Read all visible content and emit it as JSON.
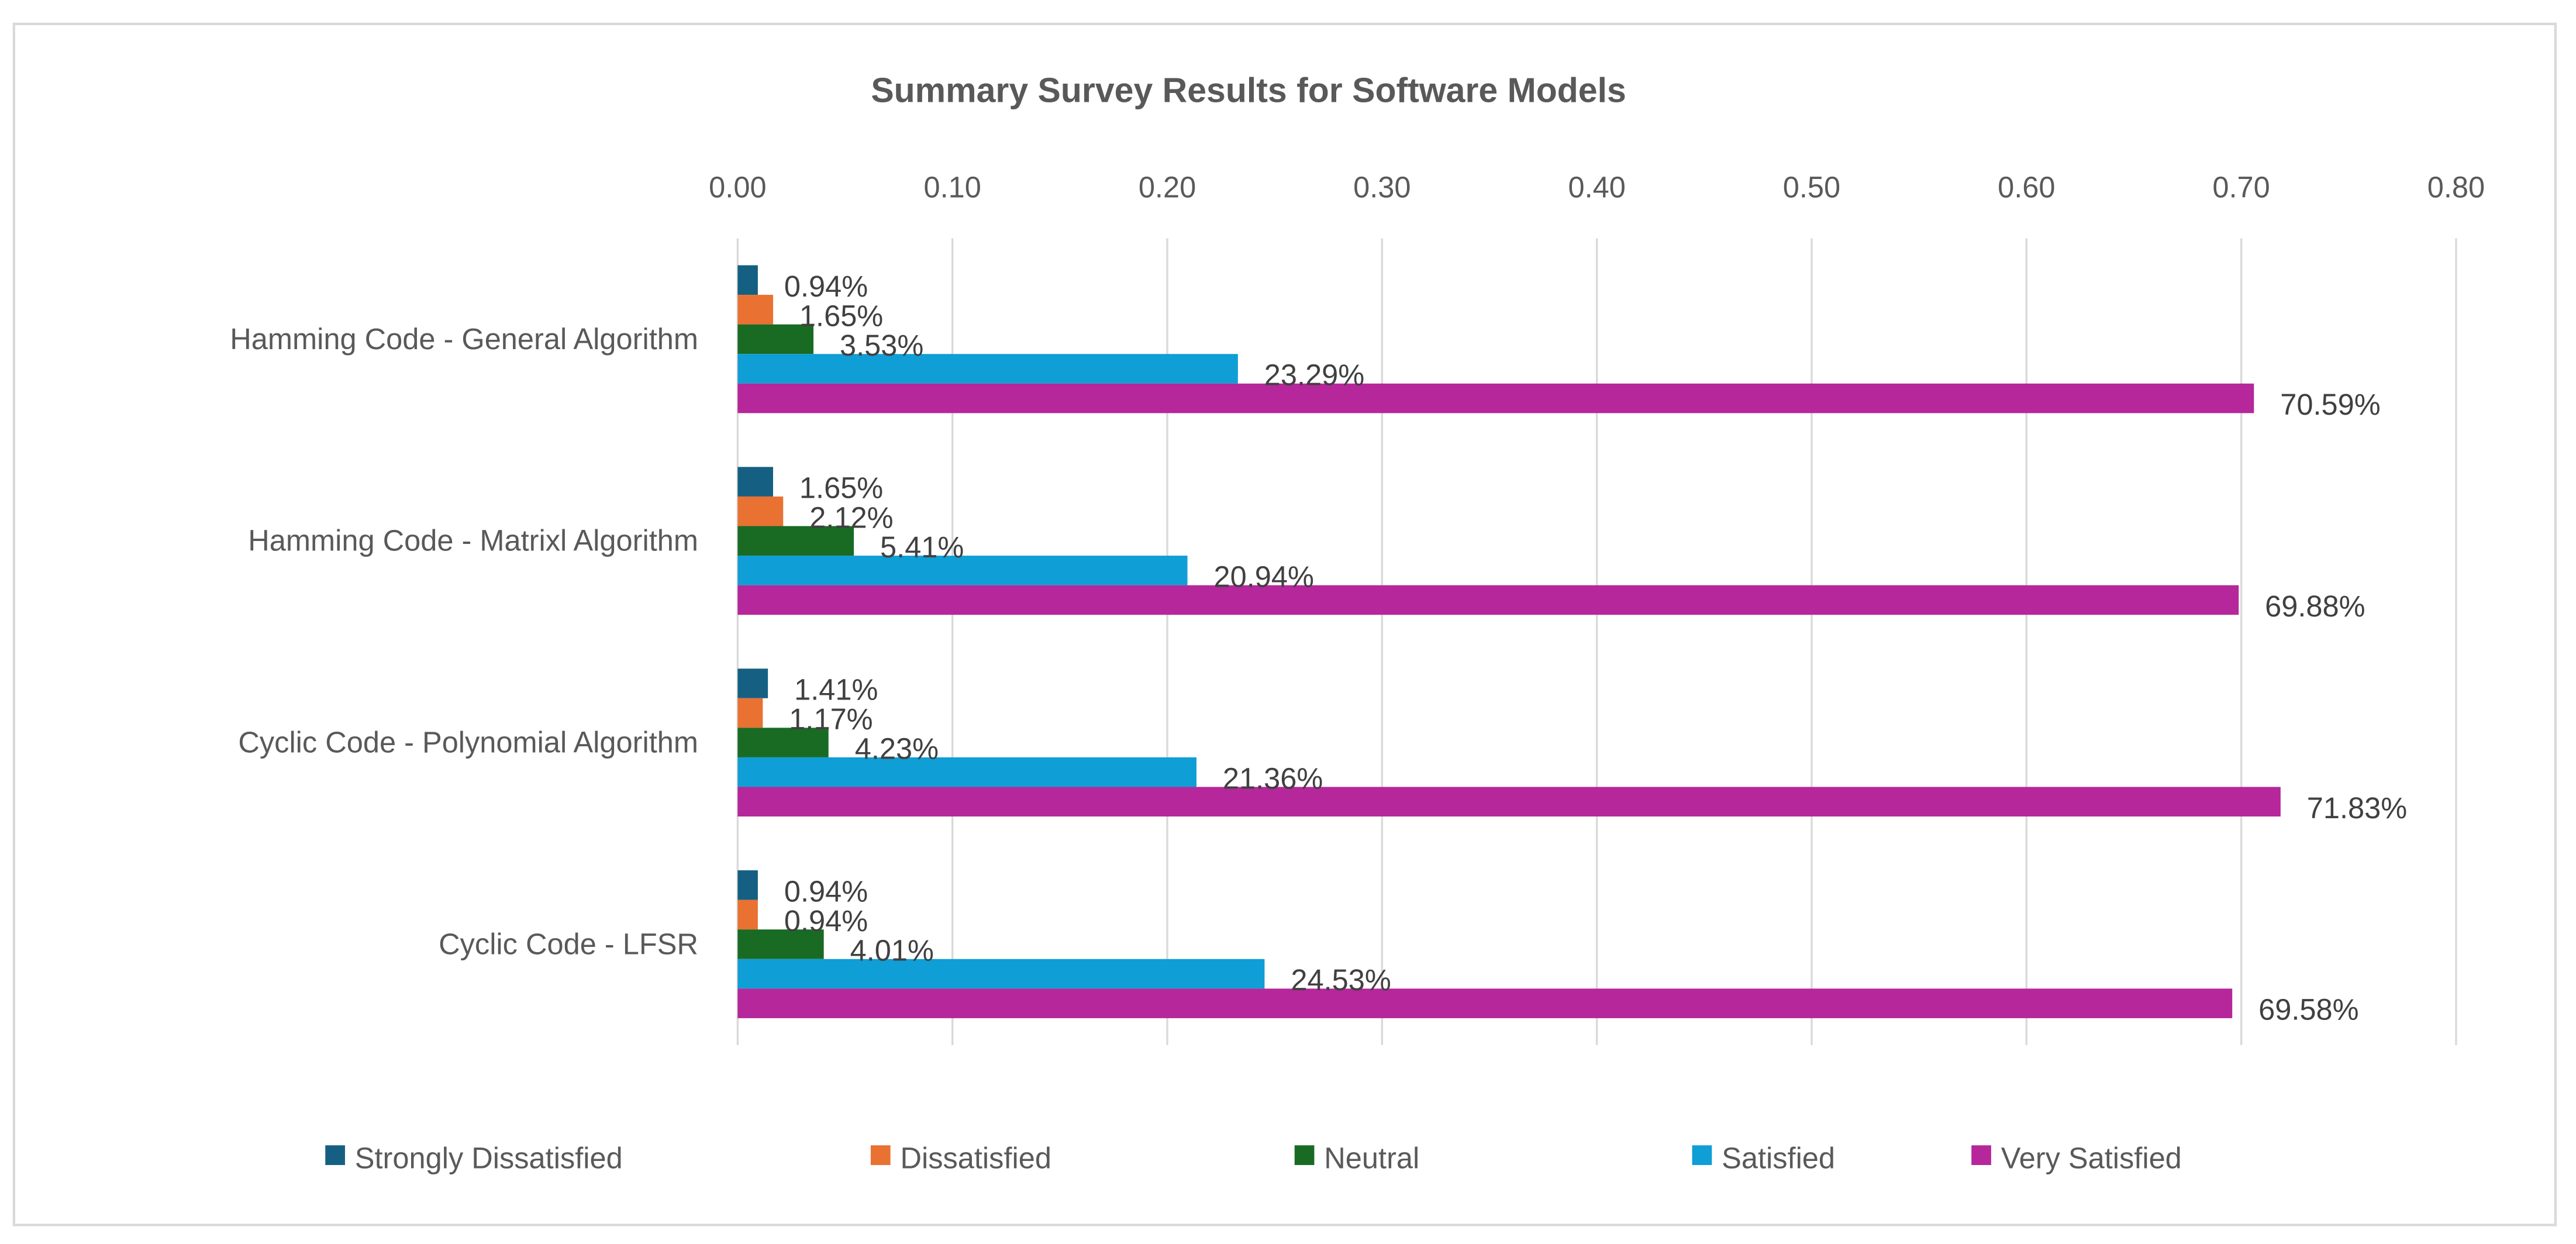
{
  "chart_data": {
    "type": "bar",
    "orientation": "horizontal",
    "title": "Summary Survey Results for Software Models",
    "xlabel": "",
    "ylabel": "",
    "xlim": [
      0,
      0.8
    ],
    "x_ticks": [
      "0.00",
      "0.10",
      "0.20",
      "0.30",
      "0.40",
      "0.50",
      "0.60",
      "0.70",
      "0.80"
    ],
    "grid": true,
    "legend_position": "bottom",
    "categories": [
      "Hamming Code - General Algorithm",
      "Hamming Code - Matrixl Algorithm",
      "Cyclic Code - Polynomial Algorithm",
      "Cyclic Code - LFSR"
    ],
    "series": [
      {
        "name": "Strongly Dissatisfied",
        "color": "#156082",
        "values": [
          0.0094,
          0.0165,
          0.0141,
          0.0094
        ],
        "labels": [
          "0.94%",
          "1.65%",
          "1.41%",
          "0.94%"
        ]
      },
      {
        "name": "Dissatisfied",
        "color": "#E97132",
        "values": [
          0.0165,
          0.0212,
          0.0117,
          0.0094
        ],
        "labels": [
          "1.65%",
          "2.12%",
          "1.17%",
          "0.94%"
        ]
      },
      {
        "name": "Neutral",
        "color": "#196B24",
        "values": [
          0.0353,
          0.0541,
          0.0423,
          0.0401
        ],
        "labels": [
          "3.53%",
          "5.41%",
          "4.23%",
          "4.01%"
        ]
      },
      {
        "name": "Satisfied",
        "color": "#0F9ED5",
        "values": [
          0.2329,
          0.2094,
          0.2136,
          0.2453
        ],
        "labels": [
          "23.29%",
          "20.94%",
          "21.36%",
          "24.53%"
        ]
      },
      {
        "name": "Very Satisfied",
        "color": "#B5279A",
        "values": [
          0.7059,
          0.6988,
          0.7183,
          0.6958
        ],
        "labels": [
          "70.59%",
          "69.88%",
          "71.83%",
          "69.58%"
        ]
      }
    ]
  }
}
